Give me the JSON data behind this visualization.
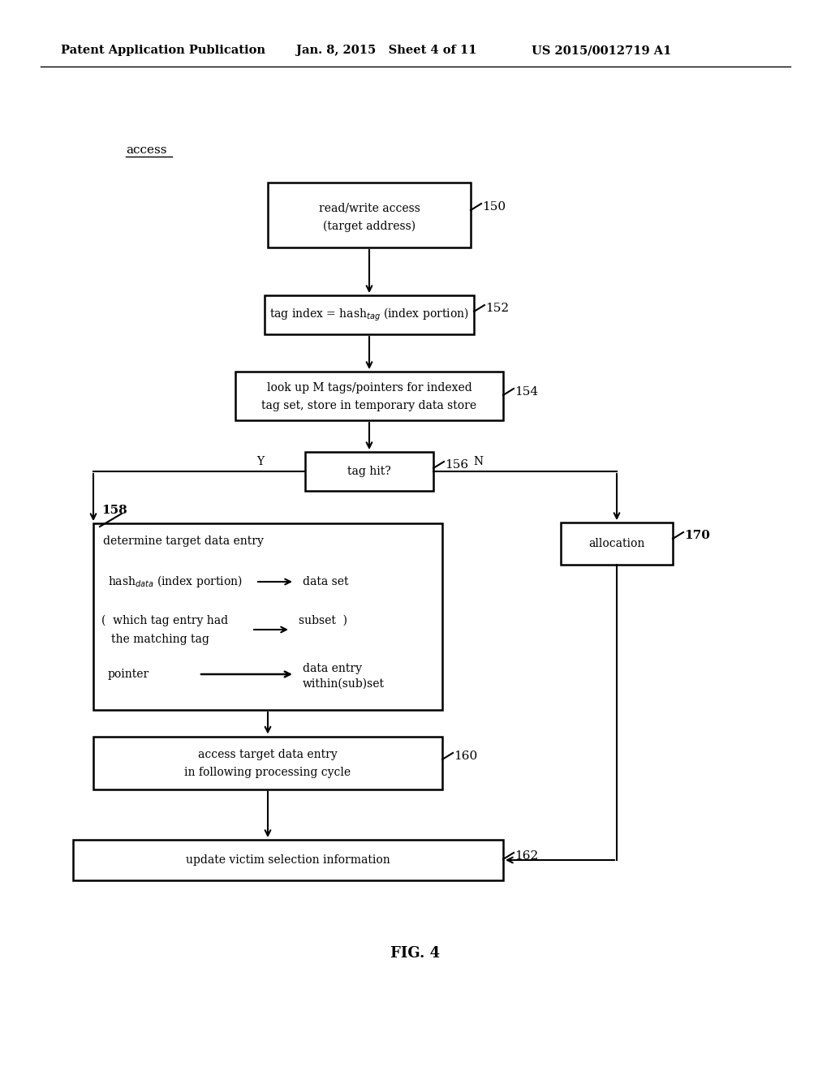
{
  "bg_color": "#ffffff",
  "header_left": "Patent Application Publication",
  "header_mid": "Jan. 8, 2015   Sheet 4 of 11",
  "header_right": "US 2015/0012719 A1",
  "access_label": "access",
  "fig_label": "FIG. 4"
}
